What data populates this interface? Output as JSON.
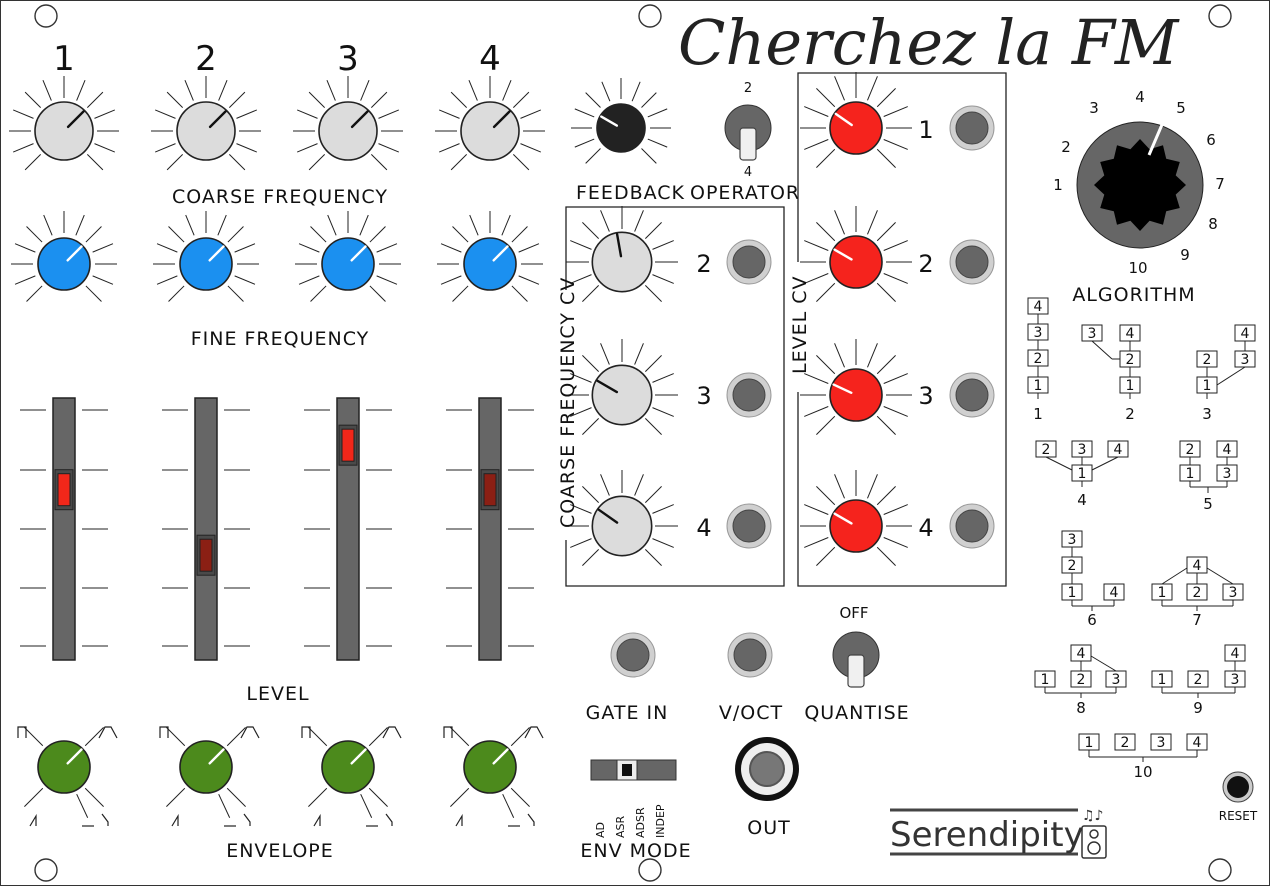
{
  "title": "Cherchez la FM",
  "operator_numbers": [
    "1",
    "2",
    "3",
    "4"
  ],
  "labels": {
    "coarse_frequency": "COARSE FREQUENCY",
    "fine_frequency": "FINE FREQUENCY",
    "level": "LEVEL",
    "envelope": "ENVELOPE",
    "feedback": "FEEDBACK",
    "operator": "OPERATOR",
    "coarse_frequency_cv": "COARSE FREQUENCY CV",
    "level_cv": "LEVEL CV",
    "algorithm": "ALGORITHM",
    "gate_in": "GATE IN",
    "v_oct": "V/OCT",
    "quantise": "QUANTISE",
    "off": "OFF",
    "out": "OUT",
    "env_mode": "ENV MODE",
    "reset": "RESET"
  },
  "operator_switch": {
    "top": "2",
    "bottom": "4"
  },
  "cv_numbers": {
    "coarse": [
      "2",
      "3",
      "4"
    ],
    "level": [
      "1",
      "2",
      "3",
      "4"
    ]
  },
  "algorithm_dial": [
    "1",
    "2",
    "3",
    "4",
    "5",
    "6",
    "7",
    "8",
    "9",
    "10"
  ],
  "env_modes": [
    "AD",
    "ASR",
    "ADSR",
    "INDEP"
  ],
  "brand": "Serendipity",
  "algorithm_diagrams": {
    "d1": {
      "boxes": [
        "4",
        "3",
        "2",
        "1"
      ],
      "label": "1"
    },
    "d2": {
      "boxes": [
        "3",
        "4",
        "2",
        "1"
      ],
      "label": "2"
    },
    "d3": {
      "boxes": [
        "4",
        "2",
        "3",
        "1"
      ],
      "label": "3"
    },
    "d4": {
      "boxes": [
        "2",
        "3",
        "4",
        "1"
      ],
      "label": "4"
    },
    "d5": {
      "boxes": [
        "2",
        "4",
        "1",
        "3"
      ],
      "label": "5"
    },
    "d6": {
      "boxes": [
        "3",
        "2",
        "1",
        "4"
      ],
      "label": "6"
    },
    "d7": {
      "boxes": [
        "4",
        "1",
        "2",
        "3"
      ],
      "label": "7"
    },
    "d8": {
      "boxes": [
        "4",
        "1",
        "2",
        "3"
      ],
      "label": "8"
    },
    "d9": {
      "boxes": [
        "4",
        "1",
        "2",
        "3"
      ],
      "label": "9"
    },
    "d10": {
      "boxes": [
        "1",
        "2",
        "3",
        "4"
      ],
      "label": "10"
    }
  },
  "colors": {
    "coarse_knob": "#dcdcdc",
    "fine_knob": "#1b90f0",
    "envelope_knob": "#4c8a1c",
    "feedback_knob": "#222222",
    "level_cv_knob": "#f5231d",
    "slider_led_bright": "#f2271a",
    "slider_led_dim": "#8b1f14"
  },
  "slider_levels": [
    0.65,
    0.4,
    0.82,
    0.65
  ],
  "slider_led_bright": [
    true,
    false,
    true,
    false
  ]
}
